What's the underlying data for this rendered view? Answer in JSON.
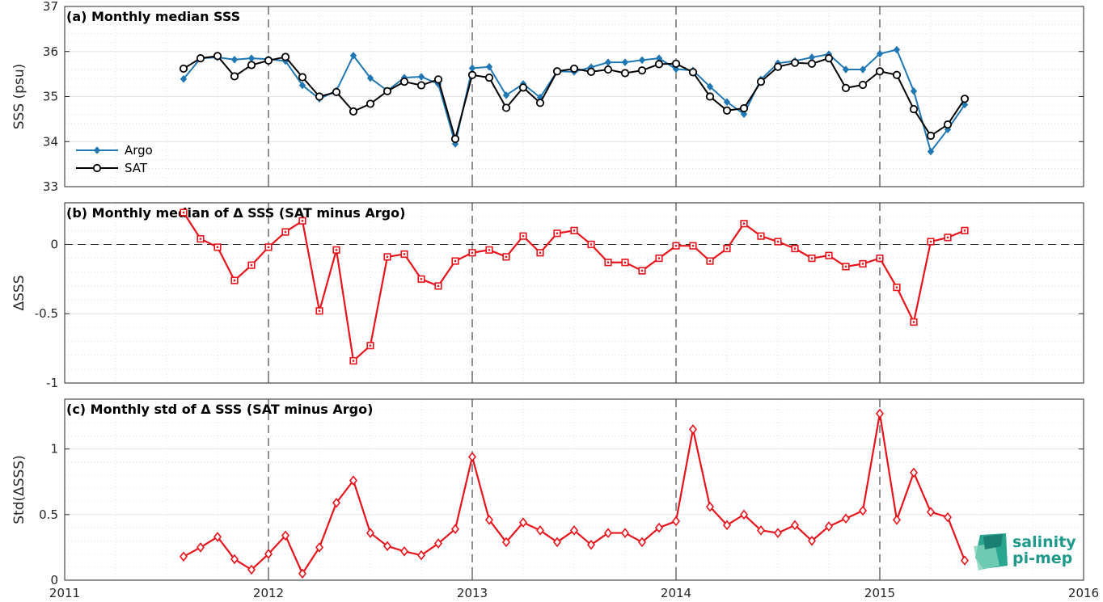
{
  "logo": {
    "line1": "salinity",
    "line2": "pi-mep"
  },
  "chart_data": [
    {
      "type": "line",
      "title": "(a) Monthly median SSS",
      "ylabel": "SSS (psu)",
      "xlim": [
        2011,
        2016
      ],
      "ylim": [
        33,
        37
      ],
      "yticks": [
        "33",
        "34",
        "35",
        "36",
        "37"
      ],
      "legend": "bottom-left",
      "grid": true,
      "series": [
        {
          "name": "Argo",
          "color": "#1f77b4",
          "marker": "diamond",
          "values": [
            35.39,
            35.85,
            35.87,
            35.82,
            35.85,
            35.83,
            35.79,
            35.25,
            34.95,
            35.13,
            35.91,
            35.41,
            35.13,
            35.42,
            35.44,
            35.28,
            33.95,
            35.63,
            35.66,
            35.03,
            35.28,
            34.98,
            35.56,
            35.55,
            35.65,
            35.76,
            35.76,
            35.81,
            35.85,
            35.61,
            35.58,
            35.22,
            34.88,
            34.61,
            35.38,
            35.74,
            35.79,
            35.87,
            35.94,
            35.6,
            35.6,
            35.95,
            36.04,
            35.12,
            33.78,
            34.27,
            34.82
          ]
        },
        {
          "name": "SAT",
          "color": "#000000",
          "marker": "circle",
          "values": [
            35.62,
            35.85,
            35.9,
            35.45,
            35.7,
            35.8,
            35.88,
            35.43,
            35.0,
            35.1,
            34.67,
            34.84,
            35.12,
            35.33,
            35.25,
            35.38,
            34.06,
            35.48,
            35.42,
            34.75,
            35.2,
            34.86,
            35.56,
            35.62,
            35.55,
            35.6,
            35.52,
            35.58,
            35.72,
            35.73,
            35.54,
            35.0,
            34.69,
            34.74,
            35.33,
            35.66,
            35.75,
            35.73,
            35.85,
            35.19,
            35.26,
            35.56,
            35.48,
            34.72,
            34.13,
            34.38,
            34.95
          ]
        }
      ]
    },
    {
      "type": "line",
      "title": "(b) Monthly median of Δ SSS (SAT minus Argo)",
      "ylabel": "ΔSSS",
      "xlim": [
        2011,
        2016
      ],
      "ylim": [
        -1,
        0.3
      ],
      "yticks": [
        "-1",
        "-0.5",
        "0"
      ],
      "grid": true,
      "series": [
        {
          "color": "#e8141c",
          "marker": "square",
          "values": [
            0.23,
            0.04,
            -0.02,
            -0.26,
            -0.15,
            -0.02,
            0.09,
            0.17,
            -0.48,
            -0.04,
            -0.84,
            -0.73,
            -0.09,
            -0.07,
            -0.25,
            -0.3,
            -0.12,
            -0.06,
            -0.04,
            -0.09,
            0.06,
            -0.06,
            0.08,
            0.1,
            0.0,
            -0.13,
            -0.13,
            -0.19,
            -0.1,
            -0.01,
            -0.01,
            -0.12,
            -0.03,
            0.15,
            0.06,
            0.02,
            -0.03,
            -0.1,
            -0.08,
            -0.16,
            -0.14,
            -0.1,
            -0.31,
            -0.56,
            0.02,
            0.05,
            0.1
          ]
        }
      ]
    },
    {
      "type": "line",
      "title": "(c) Monthly std of Δ SSS (SAT minus Argo)",
      "ylabel": "Std(ΔSSS)",
      "xlim": [
        2011,
        2016
      ],
      "ylim": [
        0,
        1.38
      ],
      "yticks": [
        "0",
        "0.5",
        "1"
      ],
      "xticks": [
        "2011",
        "2012",
        "2013",
        "2014",
        "2015",
        "2016"
      ],
      "grid": true,
      "series": [
        {
          "color": "#e8141c",
          "marker": "diamond",
          "values": [
            0.18,
            0.25,
            0.33,
            0.16,
            0.08,
            0.2,
            0.34,
            0.05,
            0.25,
            0.59,
            0.76,
            0.36,
            0.26,
            0.22,
            0.19,
            0.28,
            0.39,
            0.94,
            0.46,
            0.29,
            0.44,
            0.38,
            0.29,
            0.38,
            0.27,
            0.36,
            0.36,
            0.29,
            0.4,
            0.45,
            1.15,
            0.56,
            0.42,
            0.5,
            0.38,
            0.36,
            0.42,
            0.3,
            0.41,
            0.47,
            0.53,
            1.27,
            0.46,
            0.82,
            0.52,
            0.48,
            0.15
          ]
        }
      ]
    }
  ]
}
